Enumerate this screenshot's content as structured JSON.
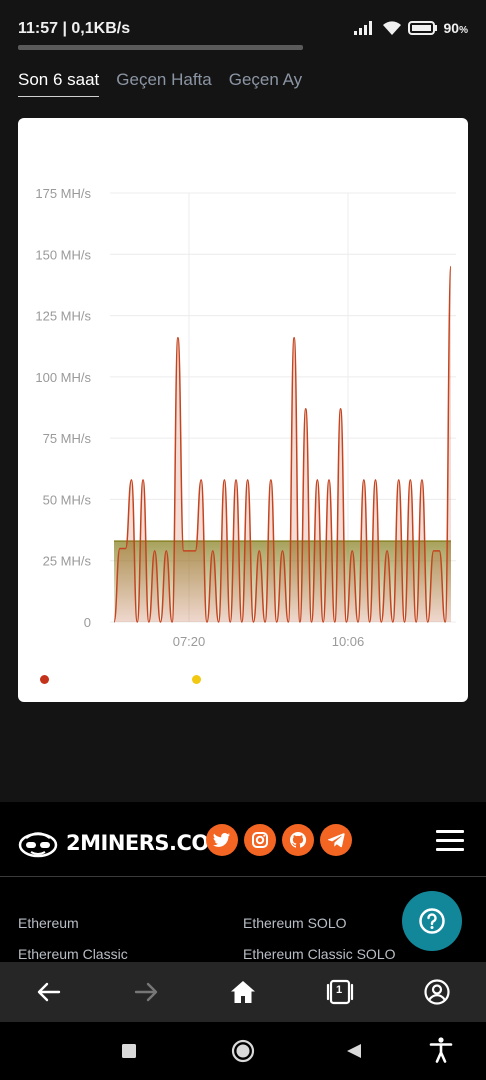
{
  "status_bar": {
    "time": "11:57 | 0,1KB/s",
    "battery": "90",
    "battery_unit": "%"
  },
  "tabs": [
    {
      "label": "Son 6 saat",
      "active": true
    },
    {
      "label": "Geçen Hafta",
      "active": false
    },
    {
      "label": "Geçen Ay",
      "active": false
    }
  ],
  "colors": {
    "accent_orange": "#f26522",
    "series_line": "#c4441f",
    "average_band": "#8a8226",
    "legend_red": "#c4321c",
    "legend_yellow": "#f2c811",
    "help_button": "#12879a"
  },
  "chart_data": {
    "type": "area",
    "y_tick_labels": [
      "0",
      "25 MH/s",
      "50 MH/s",
      "75 MH/s",
      "100 MH/s",
      "125 MH/s",
      "150 MH/s",
      "175 MH/s"
    ],
    "x_tick_labels": [
      "07:20",
      "10:06"
    ],
    "ylim": [
      0,
      175
    ],
    "grid": true,
    "series": [
      {
        "values": [
          0,
          30,
          30,
          58,
          0,
          58,
          0,
          29,
          0,
          29,
          0,
          116,
          29,
          29,
          29,
          58,
          0,
          29,
          0,
          58,
          0,
          58,
          0,
          58,
          0,
          29,
          0,
          58,
          0,
          29,
          0,
          116,
          0,
          87,
          0,
          58,
          0,
          58,
          0,
          87,
          0,
          29,
          0,
          58,
          0,
          58,
          0,
          29,
          0,
          58,
          0,
          58,
          0,
          58,
          0,
          29,
          29,
          0,
          145
        ]
      },
      {
        "values": [
          33,
          33
        ]
      }
    ]
  },
  "footer": {
    "logo_text": "2MINERS.COM",
    "social_icons": [
      "twitter-icon",
      "instagram-icon",
      "github-icon",
      "telegram-icon"
    ],
    "links": [
      {
        "label": "Ethereum"
      },
      {
        "label": "Ethereum SOLO"
      },
      {
        "label": "Ethereum Classic"
      },
      {
        "label": "Ethereum Classic SOLO"
      }
    ],
    "help_icon": "help-icon"
  },
  "browser_bar": {
    "tab_count": "1",
    "icons": [
      "back-arrow-icon",
      "forward-arrow-icon",
      "home-icon",
      "tabs-icon",
      "account-icon"
    ]
  },
  "nav_bar": {
    "icons": [
      "recents-square-icon",
      "home-circle-icon",
      "back-triangle-icon",
      "accessibility-icon"
    ]
  }
}
